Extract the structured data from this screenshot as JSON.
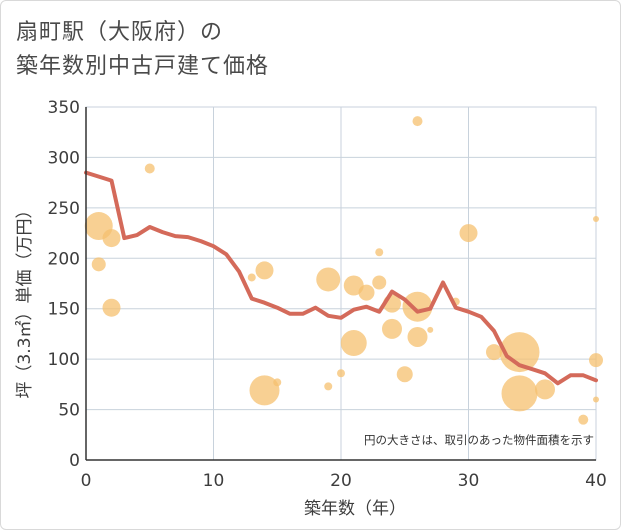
{
  "chart_data": {
    "type": "scatter",
    "title_line1": "扇町駅（大阪府）の",
    "title_line2": "築年数別中古戸建て価格",
    "xlabel": "築年数（年）",
    "ylabel": "坪（3.3㎡）単価（万円）",
    "xlim": [
      0,
      40
    ],
    "ylim": [
      0,
      350
    ],
    "xticks": [
      0,
      10,
      20,
      30,
      40
    ],
    "yticks": [
      0,
      50,
      100,
      150,
      200,
      250,
      300,
      350
    ],
    "grid": true,
    "note": "円の大きさは、取引のあった物件面積を示す",
    "colors": {
      "bubble": "#f5c06f",
      "line": "#d46a5a",
      "grid": "#c8d2dc"
    },
    "scatter": [
      {
        "x": 1,
        "y": 232,
        "size": 14
      },
      {
        "x": 1,
        "y": 194,
        "size": 7
      },
      {
        "x": 2,
        "y": 220,
        "size": 9
      },
      {
        "x": 2,
        "y": 151,
        "size": 9
      },
      {
        "x": 5,
        "y": 289,
        "size": 5
      },
      {
        "x": 13,
        "y": 181,
        "size": 4
      },
      {
        "x": 14,
        "y": 188,
        "size": 9
      },
      {
        "x": 14,
        "y": 69,
        "size": 15
      },
      {
        "x": 15,
        "y": 77,
        "size": 4
      },
      {
        "x": 19,
        "y": 179,
        "size": 12
      },
      {
        "x": 19,
        "y": 73,
        "size": 4
      },
      {
        "x": 20,
        "y": 86,
        "size": 4
      },
      {
        "x": 21,
        "y": 173,
        "size": 10
      },
      {
        "x": 21,
        "y": 116,
        "size": 13
      },
      {
        "x": 22,
        "y": 166,
        "size": 8
      },
      {
        "x": 23,
        "y": 206,
        "size": 4
      },
      {
        "x": 23,
        "y": 176,
        "size": 7
      },
      {
        "x": 24,
        "y": 155,
        "size": 9
      },
      {
        "x": 24,
        "y": 130,
        "size": 10
      },
      {
        "x": 25,
        "y": 85,
        "size": 8
      },
      {
        "x": 26,
        "y": 336,
        "size": 5
      },
      {
        "x": 26,
        "y": 152,
        "size": 15
      },
      {
        "x": 26,
        "y": 122,
        "size": 10
      },
      {
        "x": 27,
        "y": 129,
        "size": 3
      },
      {
        "x": 29,
        "y": 157,
        "size": 4
      },
      {
        "x": 30,
        "y": 225,
        "size": 9
      },
      {
        "x": 32,
        "y": 107,
        "size": 8
      },
      {
        "x": 34,
        "y": 107,
        "size": 20
      },
      {
        "x": 34,
        "y": 66,
        "size": 18
      },
      {
        "x": 36,
        "y": 70,
        "size": 10
      },
      {
        "x": 39,
        "y": 40,
        "size": 5
      },
      {
        "x": 40,
        "y": 239,
        "size": 3
      },
      {
        "x": 40,
        "y": 99,
        "size": 7
      },
      {
        "x": 40,
        "y": 60,
        "size": 3
      }
    ],
    "line": {
      "x": [
        0,
        1,
        2,
        3,
        4,
        5,
        6,
        7,
        8,
        9,
        10,
        11,
        12,
        13,
        14,
        15,
        16,
        17,
        18,
        19,
        20,
        21,
        22,
        23,
        24,
        25,
        26,
        27,
        28,
        29,
        30,
        31,
        32,
        33,
        34,
        35,
        36,
        37,
        38,
        39,
        40
      ],
      "y": [
        285,
        281,
        277,
        220,
        223,
        231,
        226,
        222,
        221,
        217,
        212,
        204,
        187,
        160,
        156,
        151,
        145,
        145,
        151,
        143,
        141,
        149,
        152,
        147,
        167,
        159,
        147,
        150,
        176,
        151,
        147,
        142,
        128,
        103,
        94,
        90,
        86,
        76,
        84,
        84,
        79
      ]
    }
  }
}
